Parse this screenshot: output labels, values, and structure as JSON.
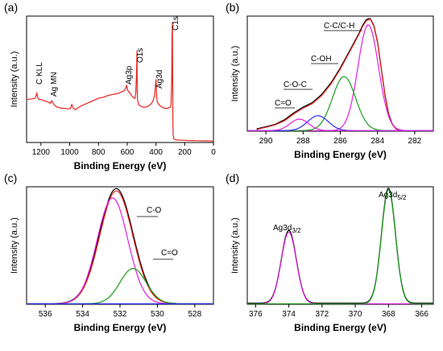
{
  "chart_data": [
    {
      "panel_label": "(a)",
      "type": "line",
      "xlabel": "Binding Energy (eV)",
      "ylabel": "Intensity (a.u.)",
      "xlim": [
        1300,
        0
      ],
      "ylim": [
        0,
        1
      ],
      "x_ticks": [
        1200,
        1000,
        800,
        600,
        400,
        200,
        0
      ],
      "grid": false,
      "series": [
        {
          "color": "#e8231f",
          "x": [
            1300,
            1265,
            1240,
            1228,
            1222,
            1215,
            1200,
            1175,
            1150,
            1135,
            1125,
            1110,
            1090,
            1070,
            1050,
            1030,
            1010,
            995,
            985,
            975,
            960,
            940,
            920,
            900,
            880,
            860,
            840,
            820,
            800,
            780,
            760,
            740,
            720,
            700,
            680,
            660,
            640,
            620,
            610,
            605,
            600,
            595,
            590,
            585,
            580,
            575,
            570,
            565,
            560,
            555,
            550,
            545,
            540,
            535,
            532,
            531,
            530,
            528,
            525,
            520,
            510,
            500,
            490,
            480,
            470,
            460,
            450,
            440,
            430,
            420,
            410,
            405,
            400,
            398,
            395,
            390,
            385,
            380,
            375,
            370,
            365,
            360,
            355,
            350,
            340,
            330,
            320,
            310,
            300,
            295,
            290,
            288,
            286,
            284,
            282,
            280,
            278,
            275,
            270,
            260,
            250,
            240,
            230,
            220,
            200,
            180,
            160,
            140,
            120,
            100,
            80,
            60,
            40,
            20,
            10,
            5,
            0
          ],
          "y": [
            0.34,
            0.345,
            0.35,
            0.39,
            0.355,
            0.34,
            0.34,
            0.33,
            0.32,
            0.31,
            0.33,
            0.3,
            0.28,
            0.275,
            0.27,
            0.27,
            0.265,
            0.27,
            0.3,
            0.27,
            0.26,
            0.275,
            0.29,
            0.3,
            0.31,
            0.32,
            0.33,
            0.34,
            0.35,
            0.355,
            0.36,
            0.37,
            0.375,
            0.38,
            0.385,
            0.39,
            0.4,
            0.41,
            0.43,
            0.45,
            0.43,
            0.41,
            0.4,
            0.4,
            0.39,
            0.38,
            0.37,
            0.365,
            0.36,
            0.355,
            0.35,
            0.35,
            0.4,
            0.55,
            0.73,
            0.6,
            0.4,
            0.34,
            0.32,
            0.3,
            0.29,
            0.285,
            0.28,
            0.28,
            0.28,
            0.285,
            0.29,
            0.3,
            0.31,
            0.33,
            0.37,
            0.42,
            0.5,
            0.45,
            0.36,
            0.32,
            0.31,
            0.3,
            0.295,
            0.29,
            0.285,
            0.28,
            0.28,
            0.275,
            0.27,
            0.27,
            0.27,
            0.275,
            0.28,
            0.3,
            0.5,
            0.85,
            0.95,
            0.6,
            0.15,
            0.06,
            0.04,
            0.03,
            0.025,
            0.02,
            0.02,
            0.02,
            0.018,
            0.018,
            0.017,
            0.016,
            0.015,
            0.015,
            0.014,
            0.014,
            0.013,
            0.013,
            0.012,
            0.012,
            0.011,
            0.011,
            0.01
          ]
        }
      ],
      "annotations": [
        {
          "text": "C KLL",
          "x": 1228
        },
        {
          "text": "Ag MN",
          "x": 1135
        },
        {
          "text": "Ag3p",
          "x": 605
        },
        {
          "text": "O1s",
          "x": 532
        },
        {
          "text": "Ag3d",
          "x": 400
        },
        {
          "text": "C1s",
          "x": 286
        }
      ]
    },
    {
      "panel_label": "(b)",
      "type": "line",
      "xlabel": "Binding Energy (eV)",
      "ylabel": "Intensity (a.u.)",
      "xlim": [
        291,
        281
      ],
      "ylim": [
        0,
        1
      ],
      "x_ticks": [
        290,
        288,
        286,
        284,
        282
      ],
      "grid": false,
      "series": [
        {
          "color": "#000000",
          "role": "raw",
          "x": [
            290.5,
            290,
            289.5,
            289,
            288.5,
            288,
            287.5,
            287,
            286.5,
            286,
            285.5,
            285,
            284.8,
            284.6,
            284.4,
            284.2,
            284,
            283.8,
            283.6,
            283.4,
            283.2,
            283,
            282.8,
            282.6
          ],
          "y": [
            0.02,
            0.04,
            0.06,
            0.1,
            0.16,
            0.21,
            0.25,
            0.32,
            0.42,
            0.55,
            0.7,
            0.85,
            0.92,
            0.97,
            0.98,
            0.92,
            0.78,
            0.55,
            0.32,
            0.15,
            0.06,
            0.02,
            0.01,
            0.005
          ]
        },
        {
          "color": "#e8231f",
          "role": "fit",
          "x": [
            290.5,
            290,
            289.5,
            289,
            288.5,
            288,
            287.5,
            287,
            286.5,
            286,
            285.5,
            285,
            284.8,
            284.6,
            284.4,
            284.2,
            284,
            283.8,
            283.6,
            283.4,
            283.2,
            283,
            282.8,
            282.6
          ],
          "y": [
            0.015,
            0.035,
            0.055,
            0.09,
            0.15,
            0.2,
            0.24,
            0.31,
            0.41,
            0.54,
            0.69,
            0.84,
            0.91,
            0.96,
            0.975,
            0.915,
            0.77,
            0.54,
            0.31,
            0.14,
            0.055,
            0.018,
            0.008,
            0.004
          ]
        },
        {
          "color": "#e020e0",
          "role": "C-C/C-H",
          "peak_center": 284.5,
          "amplitude": 0.92,
          "sigma": 0.55
        },
        {
          "color": "#1a9e1a",
          "role": "C-OH",
          "peak_center": 285.8,
          "amplitude": 0.47,
          "sigma": 0.62
        },
        {
          "color": "#2a2aff",
          "role": "C-O-C",
          "peak_center": 287.2,
          "amplitude": 0.13,
          "sigma": 0.55
        },
        {
          "color": "#e020e0",
          "role": "C=O",
          "peak_center": 288.2,
          "amplitude": 0.1,
          "sigma": 0.5
        }
      ],
      "annotations": [
        {
          "text": "C-C/C-H",
          "x": 284.5
        },
        {
          "text": "C-OH",
          "x": 285.8
        },
        {
          "text": "C-O-C",
          "x": 287.2
        },
        {
          "text": "C=O",
          "x": 288.2
        }
      ]
    },
    {
      "panel_label": "(c)",
      "type": "line",
      "xlabel": "Binding Energy (eV)",
      "ylabel": "Intensity (a.u.)",
      "xlim": [
        537,
        527
      ],
      "ylim": [
        0,
        1
      ],
      "x_ticks": [
        536,
        534,
        532,
        530,
        528
      ],
      "grid": false,
      "series": [
        {
          "color": "#000000",
          "role": "raw",
          "peak_center": 532.2,
          "amplitude": 0.98,
          "sigma": 0.9
        },
        {
          "color": "#e8231f",
          "role": "fit",
          "peak_center": 532.2,
          "amplitude": 0.96,
          "sigma": 0.88
        },
        {
          "color": "#e020e0",
          "role": "C-O",
          "peak_center": 532.4,
          "amplitude": 0.9,
          "sigma": 0.82
        },
        {
          "color": "#1a9e1a",
          "role": "C=O",
          "peak_center": 531.3,
          "amplitude": 0.3,
          "sigma": 0.7
        },
        {
          "color": "#2a2aff",
          "role": "baseline",
          "y_const": 0.005
        }
      ],
      "annotations": [
        {
          "text": "C-O",
          "x": 531.5
        },
        {
          "text": "C=O",
          "x": 530.6
        }
      ]
    },
    {
      "panel_label": "(d)",
      "type": "line",
      "xlabel": "Binding Energy (eV)",
      "ylabel": "Intensity (a.u.)",
      "xlim": [
        376.5,
        365.3
      ],
      "ylim": [
        0,
        1
      ],
      "x_ticks": [
        376,
        374,
        372,
        370,
        368,
        366
      ],
      "grid": false,
      "series": [
        {
          "color": "#000000",
          "role": "raw",
          "peaks": [
            {
              "center": 374.0,
              "amplitude": 0.62,
              "sigma": 0.45
            },
            {
              "center": 368.0,
              "amplitude": 0.98,
              "sigma": 0.42
            }
          ]
        },
        {
          "color": "#e020e0",
          "role": "Ag3d3/2",
          "peak_center": 374.0,
          "amplitude": 0.61,
          "sigma": 0.45
        },
        {
          "color": "#1a9e1a",
          "role": "Ag3d5/2",
          "peak_center": 368.0,
          "amplitude": 0.97,
          "sigma": 0.42
        }
      ],
      "annotations": [
        {
          "text": "Ag3d",
          "sub": "3/2",
          "x": 374.0
        },
        {
          "text": "Ag3d",
          "sub": "5/2",
          "x": 368.0
        }
      ]
    }
  ]
}
